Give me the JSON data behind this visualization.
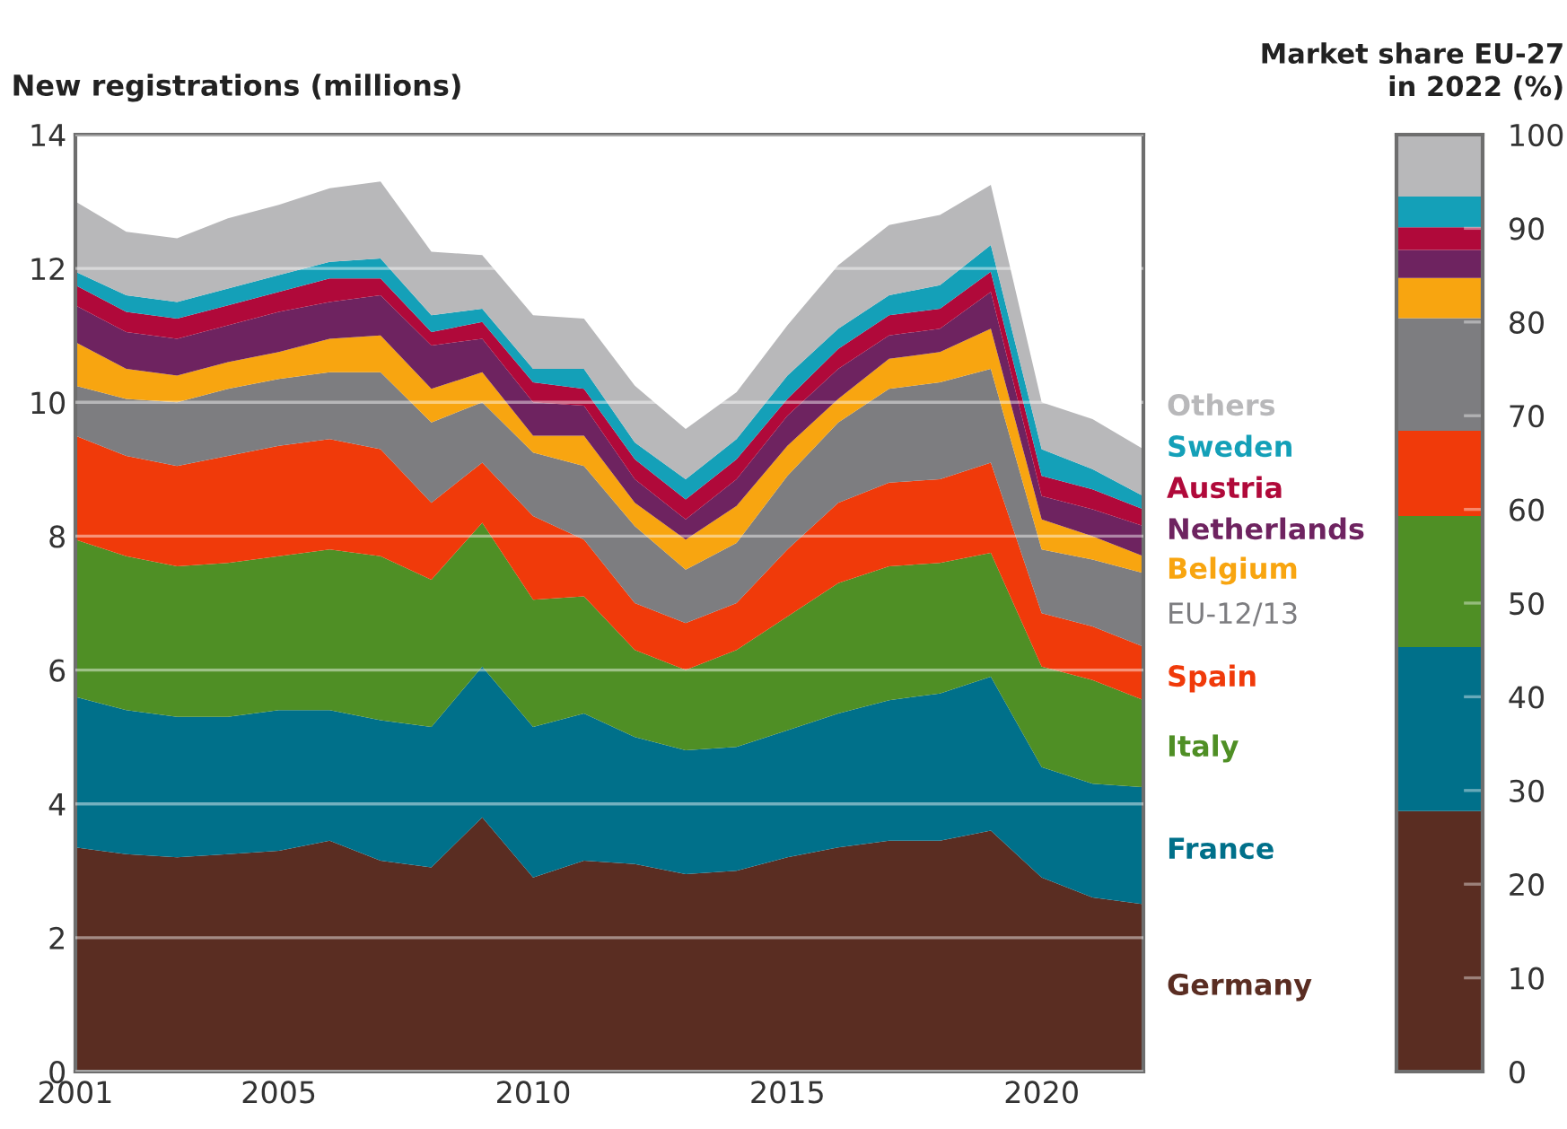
{
  "chart_data": [
    {
      "type": "area",
      "stacked": true,
      "ylabel": "New registrations (millions)",
      "x": [
        2001,
        2002,
        2003,
        2004,
        2005,
        2006,
        2007,
        2008,
        2009,
        2010,
        2011,
        2012,
        2013,
        2014,
        2015,
        2016,
        2017,
        2018,
        2019,
        2020,
        2021,
        2022
      ],
      "xlim": [
        2001,
        2022
      ],
      "xticks": [
        2001,
        2005,
        2010,
        2015,
        2020
      ],
      "ylim": [
        0,
        14
      ],
      "yticks": [
        0,
        2,
        4,
        6,
        8,
        10,
        12,
        14
      ],
      "grid": "y",
      "legend": false,
      "series": [
        {
          "name": "Germany",
          "color": "#5a2d22",
          "values": [
            3.35,
            3.25,
            3.2,
            3.25,
            3.3,
            3.45,
            3.15,
            3.05,
            3.8,
            2.9,
            3.15,
            3.1,
            2.95,
            3.0,
            3.2,
            3.35,
            3.45,
            3.45,
            3.6,
            2.9,
            2.6,
            2.5
          ]
        },
        {
          "name": "France",
          "color": "#00708a",
          "values": [
            2.25,
            2.15,
            2.1,
            2.05,
            2.1,
            1.95,
            2.1,
            2.1,
            2.25,
            2.25,
            2.2,
            1.9,
            1.85,
            1.85,
            1.9,
            2.0,
            2.1,
            2.2,
            2.3,
            1.65,
            1.7,
            1.75
          ]
        },
        {
          "name": "Italy",
          "color": "#4f8f25",
          "values": [
            2.35,
            2.3,
            2.25,
            2.3,
            2.3,
            2.4,
            2.45,
            2.2,
            2.15,
            1.9,
            1.75,
            1.3,
            1.2,
            1.45,
            1.7,
            1.95,
            2.0,
            1.95,
            1.85,
            1.5,
            1.55,
            1.3
          ]
        },
        {
          "name": "Spain",
          "color": "#f03a0a",
          "values": [
            1.55,
            1.5,
            1.5,
            1.6,
            1.65,
            1.65,
            1.6,
            1.15,
            0.9,
            1.25,
            0.85,
            0.7,
            0.7,
            0.7,
            1.0,
            1.2,
            1.25,
            1.25,
            1.35,
            0.8,
            0.8,
            0.8
          ]
        },
        {
          "name": "EU-12/13",
          "color": "#7d7d80",
          "values": [
            0.75,
            0.85,
            0.95,
            1.0,
            1.0,
            1.0,
            1.15,
            1.2,
            0.9,
            0.95,
            1.1,
            1.15,
            0.8,
            0.9,
            1.1,
            1.2,
            1.4,
            1.45,
            1.4,
            0.95,
            1.0,
            1.1
          ]
        },
        {
          "name": "Belgium",
          "color": "#f8a510",
          "values": [
            0.65,
            0.45,
            0.4,
            0.4,
            0.4,
            0.5,
            0.55,
            0.5,
            0.45,
            0.25,
            0.45,
            0.35,
            0.45,
            0.55,
            0.45,
            0.35,
            0.45,
            0.45,
            0.6,
            0.45,
            0.35,
            0.25
          ]
        },
        {
          "name": "Netherlands",
          "color": "#6e2360",
          "values": [
            0.55,
            0.55,
            0.55,
            0.55,
            0.6,
            0.55,
            0.6,
            0.65,
            0.5,
            0.5,
            0.45,
            0.35,
            0.3,
            0.4,
            0.45,
            0.45,
            0.35,
            0.35,
            0.55,
            0.35,
            0.4,
            0.45
          ]
        },
        {
          "name": "Austria",
          "color": "#b0093a",
          "values": [
            0.3,
            0.3,
            0.3,
            0.3,
            0.3,
            0.35,
            0.25,
            0.2,
            0.25,
            0.3,
            0.25,
            0.3,
            0.3,
            0.3,
            0.25,
            0.3,
            0.3,
            0.3,
            0.3,
            0.3,
            0.3,
            0.25
          ]
        },
        {
          "name": "Sweden",
          "color": "#14a0b8",
          "values": [
            0.2,
            0.25,
            0.25,
            0.25,
            0.25,
            0.25,
            0.3,
            0.25,
            0.2,
            0.2,
            0.3,
            0.25,
            0.3,
            0.3,
            0.35,
            0.3,
            0.3,
            0.35,
            0.4,
            0.4,
            0.3,
            0.2
          ]
        },
        {
          "name": "Others",
          "color": "#b8b8ba",
          "values": [
            1.05,
            0.95,
            0.95,
            1.05,
            1.05,
            1.1,
            1.15,
            0.95,
            0.8,
            0.8,
            0.75,
            0.85,
            0.75,
            0.7,
            0.75,
            0.95,
            1.05,
            1.05,
            0.9,
            0.7,
            0.75,
            0.7
          ]
        }
      ]
    },
    {
      "type": "bar",
      "stacked": true,
      "title": "Market share EU-27\nin 2022 (%)",
      "categories": [
        null
      ],
      "ylim": [
        0,
        100
      ],
      "yticks": [
        0,
        10,
        20,
        30,
        40,
        50,
        60,
        70,
        80,
        90,
        100
      ],
      "tick_labels": "y",
      "series": [
        {
          "color": "#5a2d22",
          "values": [
            27.8
          ]
        },
        {
          "color": "#00708a",
          "values": [
            17.5
          ]
        },
        {
          "color": "#4f8f25",
          "values": [
            14
          ]
        },
        {
          "color": "#f03a0a",
          "values": [
            9.1
          ]
        },
        {
          "color": "#7d7d80",
          "values": [
            12
          ]
        },
        {
          "color": "#f8a510",
          "values": [
            4.3
          ]
        },
        {
          "color": "#6e2360",
          "values": [
            3
          ]
        },
        {
          "color": "#b0093a",
          "values": [
            2.4
          ]
        },
        {
          "color": "#14a0b8",
          "values": [
            3.3
          ]
        },
        {
          "color": "#b8b8ba",
          "values": [
            6.6
          ]
        }
      ]
    }
  ]
}
